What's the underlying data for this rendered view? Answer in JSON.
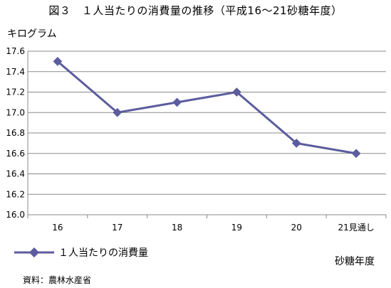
{
  "title": "図３　１人当たりの消費量の推移（平成16～21砂糖年度）",
  "source": "資料：農林水産省",
  "chart_data": {
    "type": "line",
    "title": "図３　１人当たりの消費量の推移（平成16～21砂糖年度）",
    "ylabel": "キログラム",
    "xlabel": "砂糖年度",
    "categories": [
      "16",
      "17",
      "18",
      "19",
      "20",
      "21見通し"
    ],
    "yticks": [
      "16.0",
      "16.2",
      "16.4",
      "16.6",
      "16.8",
      "17.0",
      "17.2",
      "17.4",
      "17.6"
    ],
    "ylim": [
      16.0,
      17.6
    ],
    "grid": "horizontal",
    "legend_position": "bottom-left",
    "series": [
      {
        "name": "１人当たりの消費量",
        "values": [
          17.5,
          17.0,
          17.1,
          17.2,
          16.7,
          16.6
        ],
        "color": "#5c5c9e"
      }
    ]
  }
}
